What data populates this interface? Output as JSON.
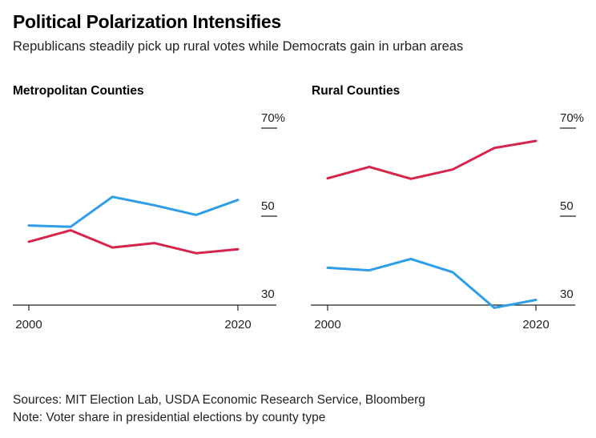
{
  "title": "Political Polarization Intensifies",
  "subtitle": "Republicans steadily pick up rural votes while Democrats gain in urban areas",
  "colors": {
    "republican": "#d7244a",
    "democrat": "#2e9ee8",
    "axis": "#222222"
  },
  "chart_data": [
    {
      "type": "line",
      "title": "Metropolitan Counties",
      "x": [
        2000,
        2004,
        2008,
        2012,
        2016,
        2020
      ],
      "xticks": [
        "2000",
        "2020"
      ],
      "yticks": [
        "70%",
        "50",
        "30"
      ],
      "ylim": [
        30,
        70
      ],
      "series": [
        {
          "color": "#2e9ee8",
          "values": [
            47.9,
            47.6,
            54.4,
            52.5,
            50.3,
            53.7
          ]
        },
        {
          "color": "#d7244a",
          "values": [
            44.2,
            46.8,
            42.9,
            43.9,
            41.6,
            42.5
          ]
        }
      ]
    },
    {
      "type": "line",
      "title": "Rural Counties",
      "x": [
        2000,
        2004,
        2008,
        2012,
        2016,
        2020
      ],
      "xticks": [
        "2000",
        "2020"
      ],
      "yticks": [
        "70%",
        "50",
        "30"
      ],
      "ylim": [
        30,
        70
      ],
      "series": [
        {
          "color": "#d7244a",
          "values": [
            58.6,
            61.2,
            58.5,
            60.6,
            65.5,
            67.1
          ]
        },
        {
          "color": "#2e9ee8",
          "values": [
            38.3,
            37.7,
            40.3,
            37.3,
            29.2,
            31.0
          ]
        }
      ]
    }
  ],
  "footer": {
    "sources": "Sources: MIT Election Lab, USDA Economic Research Service, Bloomberg",
    "note": "Note: Voter share in presidential elections by county type"
  }
}
